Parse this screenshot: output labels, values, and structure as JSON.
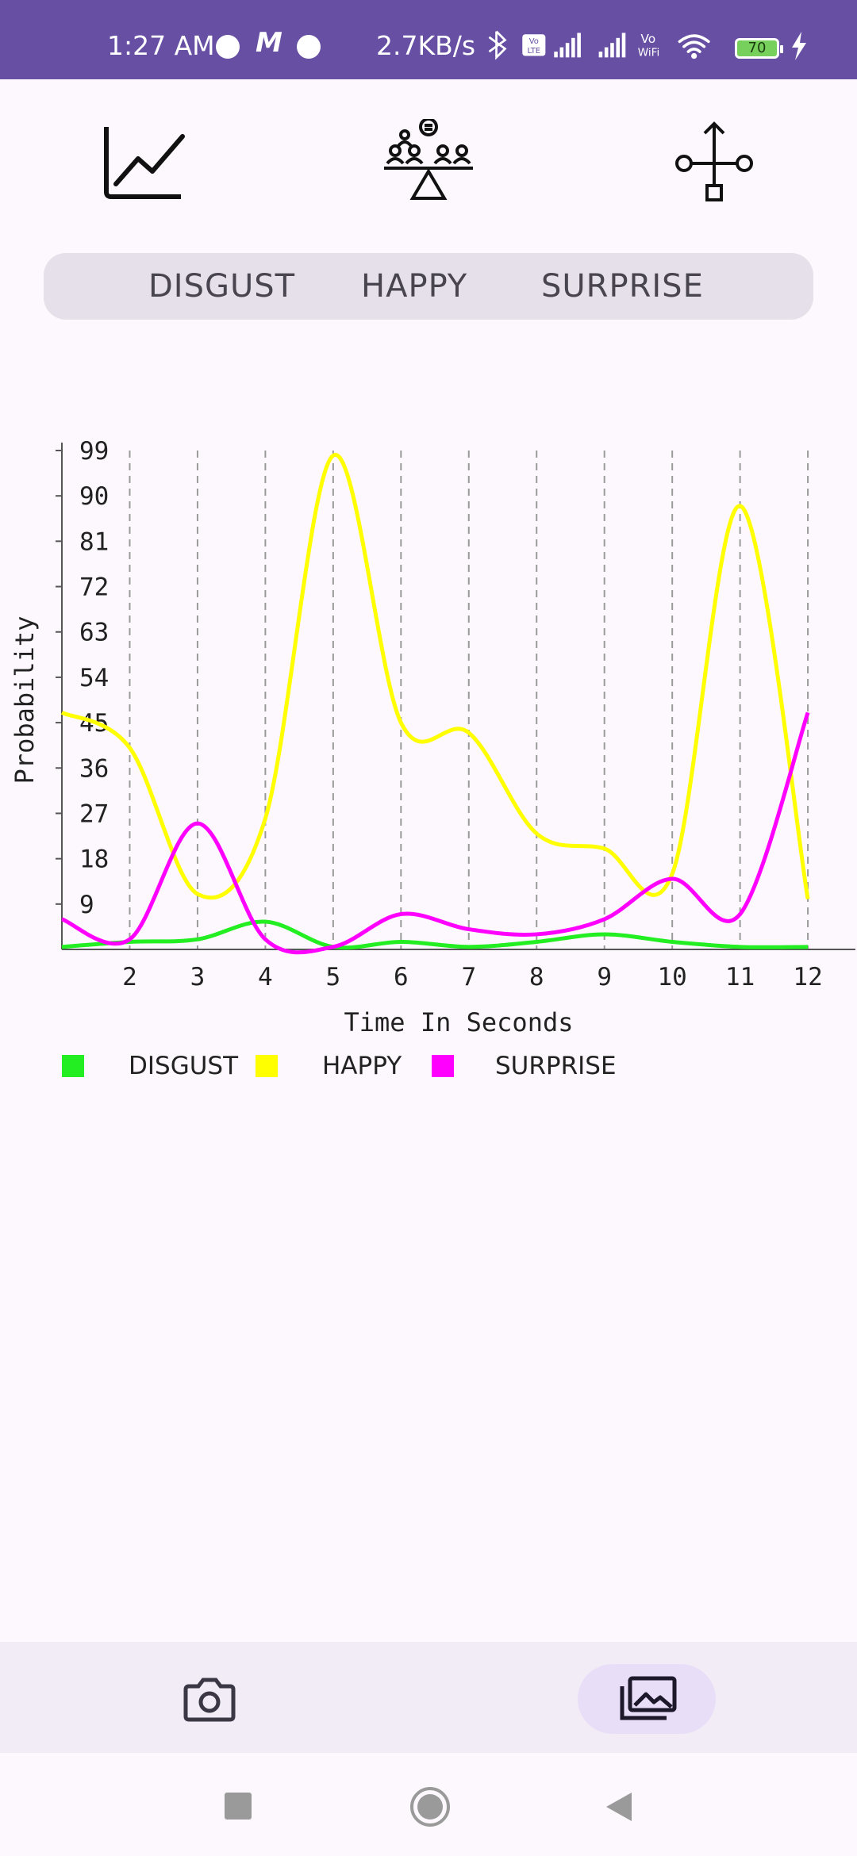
{
  "status_bar": {
    "time": "1:27 AM",
    "network_speed": "2.7KB/s",
    "battery_level": "70",
    "icons": [
      "app-notification-icon",
      "gmail-icon",
      "app-notification-icon",
      "bluetooth-icon",
      "volte-icon",
      "signal-icon",
      "signal-icon",
      "vowifi-icon",
      "wifi-icon",
      "battery-icon",
      "charging-icon"
    ]
  },
  "top_icons": [
    "line-chart-icon",
    "group-balance-icon",
    "tree-flow-icon"
  ],
  "segments": {
    "items": [
      "DISGUST",
      "HAPPY",
      "SURPRISE"
    ]
  },
  "chart_data": {
    "type": "line",
    "xlabel": "Time In Seconds",
    "ylabel": "Probability",
    "x_ticks": [
      "2",
      "3",
      "4",
      "5",
      "6",
      "7",
      "8",
      "9",
      "10",
      "11",
      "12"
    ],
    "y_ticks": [
      "9",
      "18",
      "27",
      "36",
      "45",
      "54",
      "63",
      "72",
      "81",
      "90",
      "99"
    ],
    "xlim": [
      1,
      12.35
    ],
    "ylim": [
      0,
      99
    ],
    "grid": "vertical dashed",
    "legend_position": "bottom",
    "x": [
      1,
      2,
      3,
      4,
      5,
      6,
      7,
      8,
      9,
      10,
      11,
      12
    ],
    "series": [
      {
        "name": "DISGUST",
        "color": "#22ee22",
        "values": [
          0.5,
          1.5,
          2,
          5.5,
          0.5,
          1.5,
          0.5,
          1.5,
          3,
          1.5,
          0.5,
          0.5
        ]
      },
      {
        "name": "HAPPY",
        "color": "#ffff00",
        "values": [
          47,
          40,
          11,
          26,
          98,
          45,
          43,
          23,
          20,
          15,
          88,
          10
        ]
      },
      {
        "name": "SURPRISE",
        "color": "#ff00ff",
        "values": [
          6,
          2,
          25,
          2,
          0.5,
          7,
          4,
          3,
          6,
          14,
          7,
          47
        ]
      }
    ]
  },
  "bottom_nav": {
    "items": [
      "camera-icon",
      "gallery-icon"
    ],
    "selected": "gallery-icon"
  },
  "system_nav": [
    "recents-button",
    "home-button",
    "back-button"
  ]
}
